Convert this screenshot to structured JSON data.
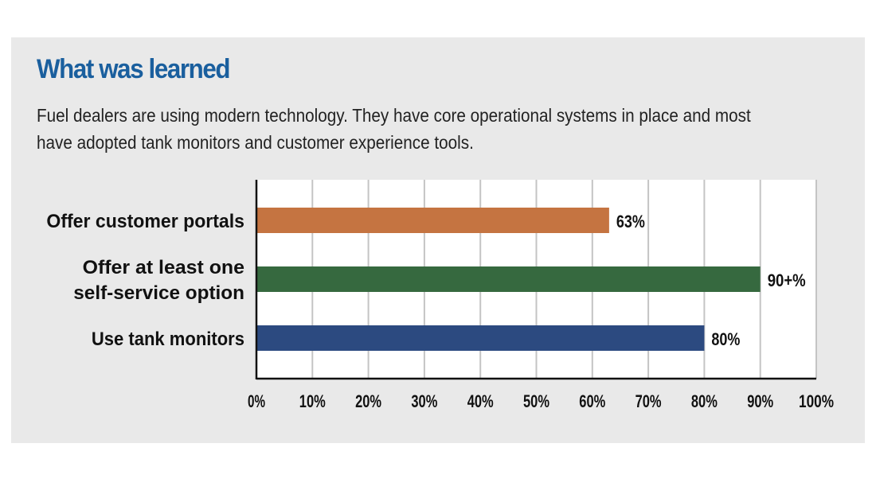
{
  "chart_data": {
    "type": "bar",
    "title": "What was learned",
    "subtitle": "Fuel dealers are using modern technology. They have core operational systems in place and most have adopted tank monitors and customer experience tools.",
    "categories": [
      [
        "Offer customer portals"
      ],
      [
        "Offer at least one",
        "self-service option"
      ],
      [
        "Use tank monitors"
      ]
    ],
    "values": [
      63,
      90,
      80
    ],
    "value_labels": [
      "63%",
      "90+%",
      "80%"
    ],
    "colors": [
      "#c57441",
      "#36693f",
      "#2c4a80"
    ],
    "xlim": [
      0,
      100
    ],
    "ticks": [
      "0%",
      "10%",
      "20%",
      "30%",
      "40%",
      "50%",
      "60%",
      "70%",
      "80%",
      "90%",
      "100%"
    ],
    "grid": true,
    "xlabel": "",
    "ylabel": ""
  }
}
